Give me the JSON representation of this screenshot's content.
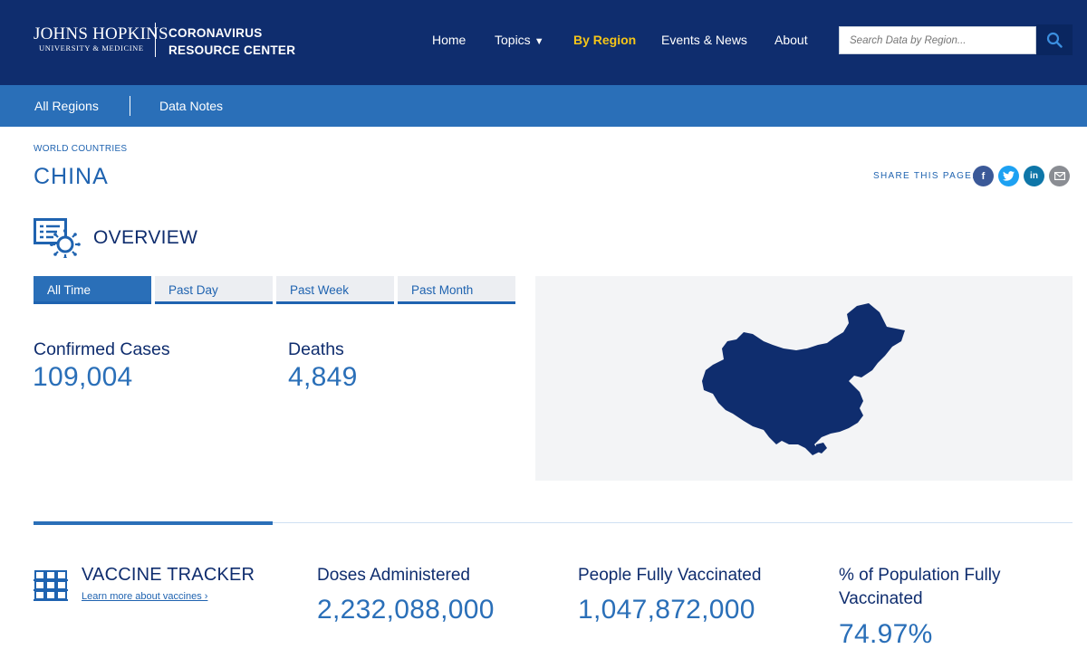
{
  "header": {
    "logo_line1": "JOHNS HOPKINS",
    "logo_line2": "UNIVERSITY & MEDICINE",
    "site_line1": "CORONAVIRUS",
    "site_line2": "RESOURCE CENTER",
    "nav": {
      "home": "Home",
      "topics": "Topics",
      "by_region": "By Region",
      "events": "Events & News",
      "about": "About"
    },
    "search_placeholder": "Search Data by Region...",
    "active_color": "#f5c518"
  },
  "subnav": {
    "all_regions": "All Regions",
    "data_notes": "Data Notes"
  },
  "page": {
    "eyebrow": "WORLD COUNTRIES",
    "country": "CHINA",
    "share_label": "SHARE THIS PAGE:",
    "share_icons": [
      "facebook-icon",
      "twitter-icon",
      "linkedin-icon",
      "email-icon"
    ]
  },
  "overview": {
    "title": "OVERVIEW",
    "tabs": [
      "All Time",
      "Past Day",
      "Past Week",
      "Past Month"
    ],
    "active_tab": "All Time",
    "confirmed_label": "Confirmed Cases",
    "confirmed_value": "109,004",
    "deaths_label": "Deaths",
    "deaths_value": "4,849"
  },
  "vaccine": {
    "title": "VACCINE TRACKER",
    "link": "Learn more about vaccines ›",
    "doses_label": "Doses Administered",
    "doses_value": "2,232,088,000",
    "people_label": "People Fully Vaccinated",
    "people_value": "1,047,872,000",
    "pct_label": "% of Population Fully Vaccinated",
    "pct_value": "74.97%"
  },
  "colors": {
    "navy": "#0f2d6e",
    "blue": "#2a6fb8",
    "map": "#0f2d6e"
  }
}
